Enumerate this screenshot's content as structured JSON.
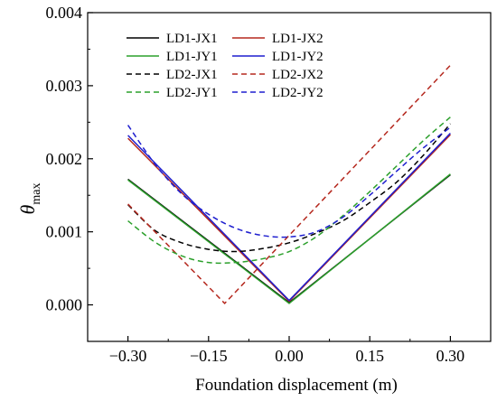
{
  "chart_data": {
    "type": "line",
    "xlabel": "Foundation displacement (m)",
    "ylabel": "θ",
    "ylabel_sub": "max",
    "xlim": [
      -0.375,
      0.375
    ],
    "ylim": [
      -0.0005,
      0.004
    ],
    "xticks": [
      -0.3,
      -0.15,
      0.0,
      0.15,
      0.3
    ],
    "xtick_labels": [
      "−0.30",
      "−0.15",
      "0.00",
      "0.15",
      "0.30"
    ],
    "yticks": [
      0.0,
      0.001,
      0.002,
      0.003,
      0.004
    ],
    "ytick_labels": [
      "0.000",
      "0.001",
      "0.002",
      "0.003",
      "0.004"
    ],
    "grid": false,
    "legend_placement": "top-left",
    "series": [
      {
        "name": "LD1-JX1",
        "color": "#000000",
        "dash": "solid",
        "x": [
          -0.3,
          0.0,
          0.3
        ],
        "y": [
          0.00172,
          3e-05,
          0.00178
        ]
      },
      {
        "name": "LD1-JX2",
        "color": "#b5281e",
        "dash": "solid",
        "x": [
          -0.3,
          0.0,
          0.3
        ],
        "y": [
          0.00228,
          5e-05,
          0.00233
        ]
      },
      {
        "name": "LD1-JY1",
        "color": "#2ca02c",
        "dash": "solid",
        "x": [
          -0.3,
          0.0,
          0.3
        ],
        "y": [
          0.00171,
          2e-05,
          0.00179
        ]
      },
      {
        "name": "LD1-JY2",
        "color": "#1f1fcf",
        "dash": "solid",
        "x": [
          -0.3,
          0.0,
          0.3
        ],
        "y": [
          0.00232,
          6e-05,
          0.00235
        ]
      },
      {
        "name": "LD2-JX1",
        "color": "#000000",
        "dash": "dashed",
        "x": [
          -0.3,
          -0.25,
          -0.2,
          -0.15,
          -0.1,
          -0.05,
          0.0,
          0.05,
          0.1,
          0.15,
          0.2,
          0.25,
          0.3
        ],
        "y": [
          0.00137,
          0.00102,
          0.00085,
          0.00076,
          0.00073,
          0.00077,
          0.00085,
          0.00098,
          0.00115,
          0.0014,
          0.00168,
          0.00205,
          0.00248
        ]
      },
      {
        "name": "LD2-JX2",
        "color": "#b5281e",
        "dash": "dashed",
        "x": [
          -0.3,
          -0.12,
          0.3
        ],
        "y": [
          0.00138,
          2e-05,
          0.00328
        ]
      },
      {
        "name": "LD2-JY1",
        "color": "#2ca02c",
        "dash": "dashed",
        "x": [
          -0.3,
          -0.25,
          -0.2,
          -0.15,
          -0.1,
          -0.05,
          0.0,
          0.05,
          0.1,
          0.15,
          0.2,
          0.25,
          0.3
        ],
        "y": [
          0.00115,
          0.00086,
          0.00067,
          0.00058,
          0.00058,
          0.00063,
          0.00073,
          0.00093,
          0.00122,
          0.00155,
          0.0019,
          0.00225,
          0.00257
        ]
      },
      {
        "name": "LD2-JY2",
        "color": "#1f1fcf",
        "dash": "dashed",
        "x": [
          -0.3,
          -0.25,
          -0.2,
          -0.15,
          -0.1,
          -0.05,
          0.0,
          0.05,
          0.1,
          0.15,
          0.2,
          0.25,
          0.3
        ],
        "y": [
          0.00246,
          0.00193,
          0.00152,
          0.00124,
          0.00105,
          0.00095,
          0.00093,
          0.001,
          0.0012,
          0.0015,
          0.00183,
          0.00215,
          0.00243
        ]
      }
    ]
  }
}
